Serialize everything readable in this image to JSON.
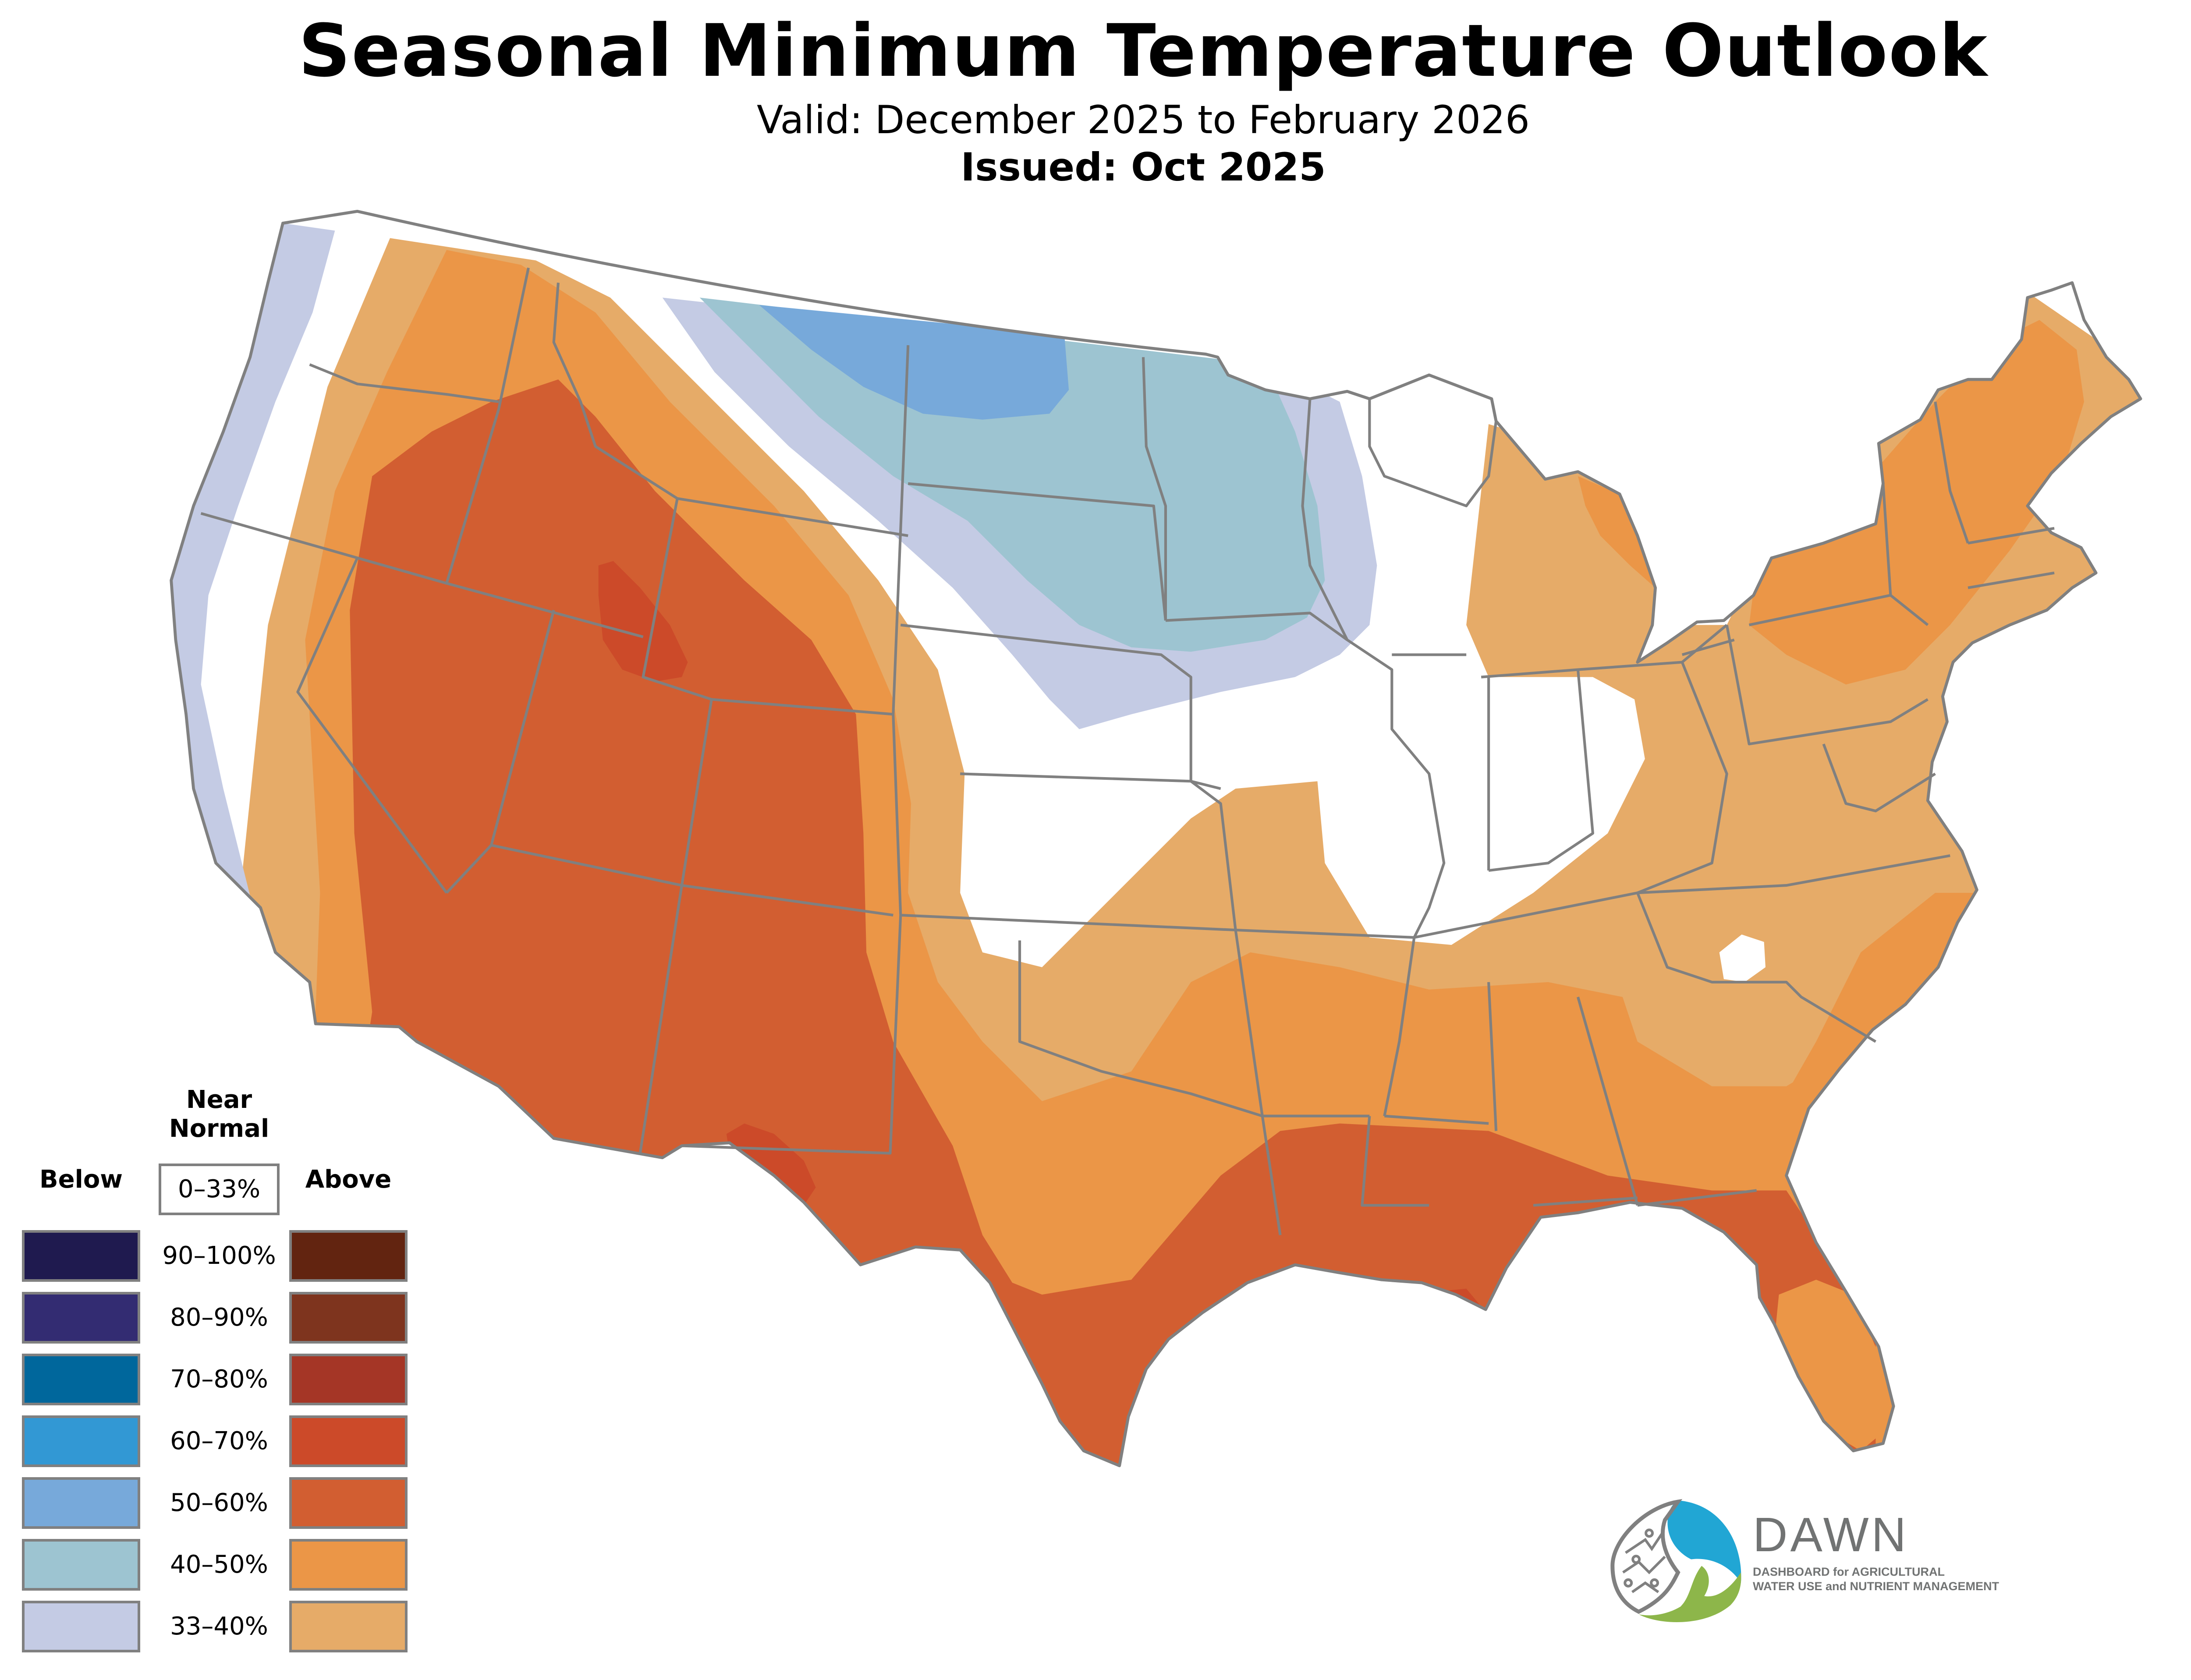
{
  "header": {
    "title": "Seasonal Minimum Temperature Outlook",
    "valid": "Valid: December 2025 to February 2026",
    "issued": "Issued: Oct 2025"
  },
  "map": {
    "region": "Contiguous United States",
    "border_color": "#808080",
    "features": [
      {
        "name": "west-coast-below-33-40",
        "category": "below",
        "range": "33–40%"
      },
      {
        "name": "north-plains-below-40-50",
        "category": "below",
        "range": "40–50%"
      },
      {
        "name": "montana-nd-below-50-60",
        "category": "below",
        "range": "50–60%"
      },
      {
        "name": "interior-west-above-50-60",
        "category": "above",
        "range": "50–60%"
      },
      {
        "name": "utah-wyoming-above-60-70",
        "category": "above",
        "range": "60–70%"
      },
      {
        "name": "gulf-coast-above-50-60",
        "category": "above",
        "range": "50–60%"
      },
      {
        "name": "south-florida-above-40-50",
        "category": "above",
        "range": "40–50%"
      },
      {
        "name": "northeast-above-40-50",
        "category": "above",
        "range": "40–50%"
      },
      {
        "name": "east-above-33-40",
        "category": "above",
        "range": "33–40%"
      }
    ]
  },
  "legend": {
    "near_normal_label": "Near Normal",
    "near_normal_range": "0–33%",
    "near_normal_color": "#ffffff",
    "below_label": "Below",
    "above_label": "Above",
    "rows": [
      {
        "range": "90–100%",
        "below_color": "#1f1a4f",
        "above_color": "#622410"
      },
      {
        "range": "80–90%",
        "below_color": "#332c72",
        "above_color": "#7e341e"
      },
      {
        "range": "70–80%",
        "below_color": "#00679c",
        "above_color": "#a53626"
      },
      {
        "range": "60–70%",
        "below_color": "#3298d4",
        "above_color": "#cc4a29"
      },
      {
        "range": "50–60%",
        "below_color": "#77a9da",
        "above_color": "#d25e31"
      },
      {
        "range": "40–50%",
        "below_color": "#9dc4d1",
        "above_color": "#eb9647"
      },
      {
        "range": "33–40%",
        "below_color": "#c4cbe4",
        "above_color": "#e6ab68"
      }
    ]
  },
  "logo": {
    "name": "DAWN",
    "line1": "DASHBOARD for AGRICULTURAL",
    "line2": "WATER USE and NUTRIENT MANAGEMENT",
    "colors": {
      "blue": "#21a6d4",
      "green": "#8db64a",
      "gray": "#717373"
    }
  }
}
